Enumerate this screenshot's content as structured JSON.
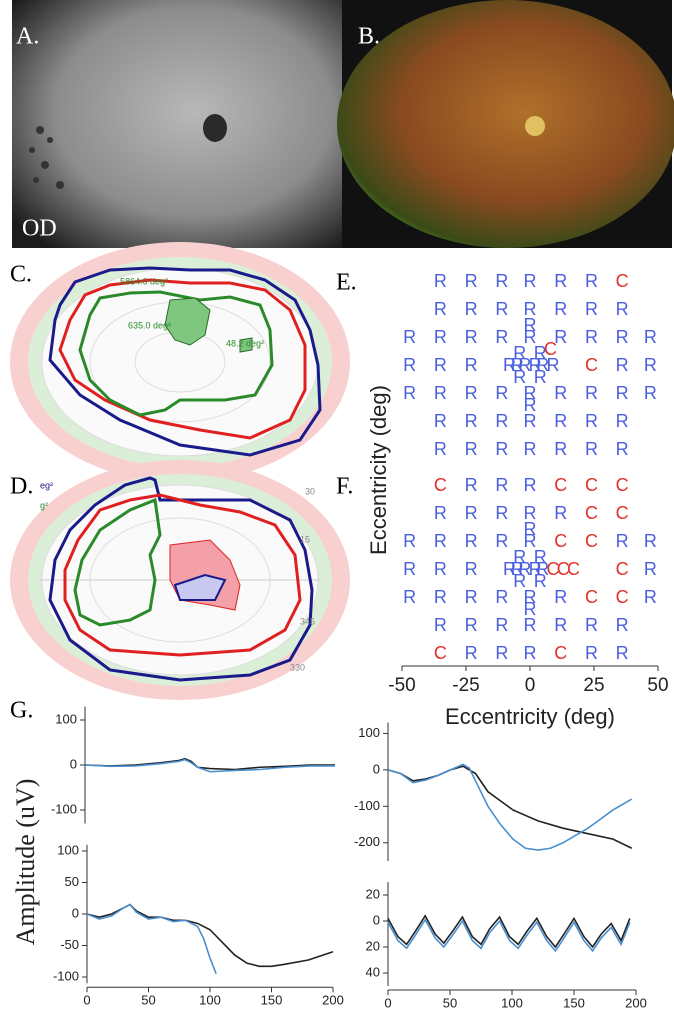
{
  "panels": {
    "A": {
      "label": "A.",
      "eye": "OD"
    },
    "B": {
      "label": "B."
    },
    "C": {
      "label": "C.",
      "areas": [
        "5864.6 deg²",
        "635.0 deg²",
        "48.2 deg²"
      ]
    },
    "D": {
      "label": "D.",
      "legend": [
        "eg²",
        "g²"
      ],
      "scale": [
        "30",
        "15",
        "345",
        "330"
      ]
    },
    "G": {
      "label": "G.",
      "ylabel": "Amplitude (uV)"
    }
  },
  "chart_data": [
    {
      "type": "scatter",
      "title": "E.",
      "xlim": [
        -50,
        50
      ],
      "ylim": [
        -26,
        26
      ],
      "series": [
        {
          "name": "R",
          "color": "#4a5fe0",
          "x": [
            -35,
            -23,
            -11,
            0,
            12,
            24,
            -35,
            -23,
            -11,
            0,
            12,
            24,
            36,
            -47,
            -35,
            -23,
            -11,
            0,
            12,
            24,
            36,
            47,
            -47,
            -35,
            -23,
            36,
            47,
            -47,
            -35,
            -23,
            -11,
            0,
            12,
            24,
            36,
            47,
            -35,
            -23,
            -11,
            0,
            12,
            24,
            36,
            -35,
            -23,
            -11,
            0,
            12,
            24,
            36,
            0,
            -4,
            4,
            -8,
            -5,
            -2,
            2,
            5,
            9,
            -4,
            4,
            0
          ],
          "y": [
            21,
            21,
            21,
            21,
            21,
            21,
            14,
            14,
            14,
            14,
            14,
            14,
            14,
            7,
            7,
            7,
            7,
            7,
            7,
            7,
            7,
            7,
            0,
            0,
            0,
            0,
            0,
            -7,
            -7,
            -7,
            -7,
            -7,
            -7,
            -7,
            -7,
            -7,
            -14,
            -14,
            -14,
            -14,
            -14,
            -14,
            -14,
            -21,
            -21,
            -21,
            -21,
            -21,
            -21,
            -21,
            10,
            3,
            3,
            0,
            0,
            0,
            0,
            0,
            0,
            -3,
            -3,
            -10
          ]
        },
        {
          "name": "C",
          "color": "#e0302a",
          "x": [
            36,
            8,
            24
          ],
          "y": [
            21,
            4,
            0
          ]
        }
      ]
    },
    {
      "type": "scatter",
      "title": "F.",
      "xlim": [
        -50,
        50
      ],
      "ylim": [
        -26,
        26
      ],
      "xticks": [
        -50,
        -25,
        0,
        25,
        50
      ],
      "xlabel": "Eccentricity (deg)",
      "ylabel": "Eccentricity (deg)",
      "series": [
        {
          "name": "R",
          "color": "#4a5fe0",
          "x": [
            -23,
            -11,
            0,
            -35,
            -23,
            -11,
            0,
            12,
            -47,
            -35,
            -23,
            -11,
            0,
            36,
            47,
            -47,
            -35,
            -23,
            47,
            -47,
            -35,
            -23,
            -11,
            0,
            12,
            47,
            -35,
            -23,
            -11,
            0,
            12,
            24,
            36,
            -23,
            -11,
            0,
            24,
            36,
            0,
            -4,
            4,
            -8,
            -5,
            -2,
            2,
            5,
            -4,
            4,
            0
          ],
          "y": [
            21,
            21,
            21,
            14,
            14,
            14,
            14,
            14,
            7,
            7,
            7,
            7,
            7,
            7,
            7,
            0,
            0,
            0,
            0,
            -7,
            -7,
            -7,
            -7,
            -7,
            -7,
            -7,
            -14,
            -14,
            -14,
            -14,
            -14,
            -14,
            -14,
            -21,
            -21,
            -21,
            -21,
            -21,
            10,
            3,
            3,
            0,
            0,
            0,
            0,
            0,
            -3,
            -3,
            -10
          ]
        },
        {
          "name": "C",
          "color": "#e0302a",
          "x": [
            -35,
            12,
            24,
            36,
            24,
            36,
            12,
            24,
            9,
            13,
            17,
            36,
            24,
            36,
            -35,
            12
          ],
          "y": [
            21,
            21,
            21,
            21,
            14,
            14,
            7,
            7,
            0,
            0,
            0,
            0,
            -7,
            -7,
            -21,
            -21
          ]
        }
      ]
    },
    {
      "type": "line",
      "xlim": [
        0,
        200
      ],
      "ylim": [
        -130,
        130
      ],
      "yticks": [
        100,
        0,
        -100
      ],
      "series": [
        {
          "color": "#222",
          "x": [
            0,
            20,
            40,
            60,
            75,
            80,
            85,
            90,
            100,
            120,
            140,
            160,
            180,
            200
          ],
          "values": [
            0,
            -2,
            0,
            5,
            10,
            14,
            8,
            -5,
            -8,
            -10,
            -5,
            -3,
            0,
            0
          ]
        },
        {
          "color": "#4a8fd0",
          "x": [
            0,
            20,
            40,
            60,
            75,
            80,
            85,
            90,
            100,
            120,
            140,
            160,
            180,
            200
          ],
          "values": [
            0,
            -3,
            -2,
            3,
            8,
            12,
            5,
            -5,
            -15,
            -12,
            -10,
            -5,
            -2,
            -2
          ]
        }
      ]
    },
    {
      "type": "line",
      "xlim": [
        0,
        200
      ],
      "ylim": [
        -250,
        130
      ],
      "yticks": [
        100,
        0,
        -100,
        -200
      ],
      "series": [
        {
          "color": "#222",
          "x": [
            0,
            10,
            20,
            30,
            40,
            50,
            60,
            70,
            80,
            100,
            120,
            140,
            160,
            180,
            195
          ],
          "values": [
            0,
            -10,
            -30,
            -25,
            -15,
            0,
            10,
            -10,
            -60,
            -110,
            -140,
            -160,
            -175,
            -190,
            -215
          ]
        },
        {
          "color": "#4a8fd0",
          "x": [
            0,
            10,
            20,
            30,
            40,
            50,
            60,
            65,
            70,
            80,
            90,
            100,
            110,
            120,
            130,
            140,
            150,
            160,
            170,
            180,
            190,
            195
          ],
          "values": [
            0,
            -10,
            -35,
            -28,
            -15,
            0,
            15,
            5,
            -30,
            -100,
            -150,
            -190,
            -215,
            -220,
            -215,
            -200,
            -180,
            -160,
            -135,
            -110,
            -90,
            -80
          ]
        }
      ]
    },
    {
      "type": "line",
      "xlim": [
        0,
        200
      ],
      "ylim": [
        -110,
        110
      ],
      "yticks": [
        100,
        50,
        0,
        -50,
        -100
      ],
      "xticks": [
        0,
        50,
        100,
        150,
        200
      ],
      "series": [
        {
          "color": "#222",
          "x": [
            0,
            10,
            20,
            30,
            35,
            40,
            50,
            60,
            70,
            80,
            90,
            100,
            110,
            120,
            130,
            140,
            150,
            160,
            180,
            200
          ],
          "values": [
            0,
            -5,
            0,
            10,
            15,
            5,
            -5,
            -5,
            -10,
            -10,
            -15,
            -25,
            -45,
            -65,
            -78,
            -83,
            -83,
            -80,
            -73,
            -60
          ]
        },
        {
          "color": "#4a8fd0",
          "x": [
            0,
            10,
            20,
            30,
            35,
            40,
            50,
            60,
            70,
            80,
            90,
            95,
            100,
            105
          ],
          "values": [
            0,
            -8,
            -3,
            10,
            15,
            3,
            -8,
            -5,
            -12,
            -10,
            -20,
            -40,
            -70,
            -95
          ]
        }
      ]
    },
    {
      "type": "line",
      "xlim": [
        0,
        200
      ],
      "ylim": [
        -30,
        50
      ],
      "inverted": true,
      "yticks": [
        {
          "value": -20,
          "label": "20"
        },
        0,
        20,
        40
      ],
      "xticks": [
        0,
        50,
        100,
        150,
        200
      ],
      "series": [
        {
          "color": "#222",
          "x": [
            0,
            8,
            15,
            22,
            30,
            38,
            45,
            52,
            60,
            68,
            75,
            82,
            90,
            98,
            105,
            112,
            120,
            128,
            135,
            142,
            150,
            158,
            165,
            172,
            180,
            188,
            195
          ],
          "values": [
            -2,
            12,
            18,
            8,
            -4,
            10,
            17,
            8,
            -3,
            12,
            18,
            6,
            -3,
            12,
            18,
            8,
            -2,
            12,
            20,
            10,
            -2,
            12,
            20,
            10,
            2,
            15,
            -2
          ]
        },
        {
          "color": "#4a8fd0",
          "x": [
            0,
            8,
            15,
            22,
            30,
            38,
            45,
            52,
            60,
            68,
            75,
            82,
            90,
            98,
            105,
            112,
            120,
            128,
            135,
            142,
            150,
            158,
            165,
            172,
            180,
            188,
            195
          ],
          "values": [
            1,
            15,
            21,
            11,
            -1,
            13,
            20,
            11,
            0,
            15,
            21,
            9,
            0,
            15,
            21,
            11,
            1,
            15,
            23,
            13,
            1,
            15,
            23,
            13,
            5,
            18,
            1
          ]
        }
      ]
    }
  ]
}
